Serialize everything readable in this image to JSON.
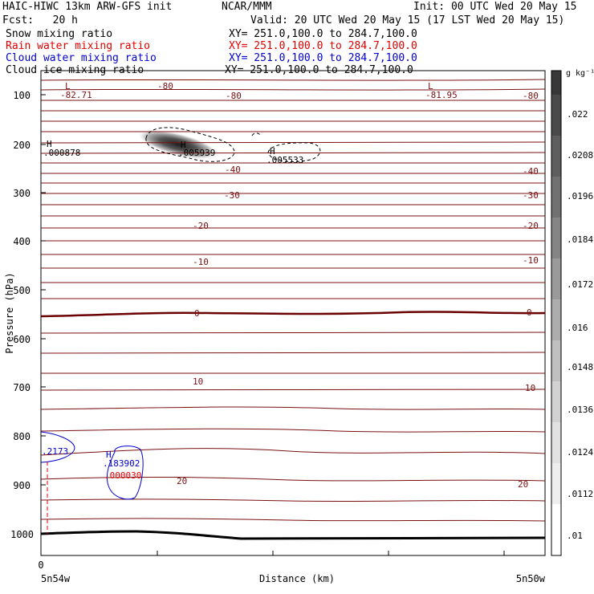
{
  "header": {
    "title": "HAIC-HIWC 13km ARW-GFS init",
    "org": "NCAR/MMM",
    "init": "Init: 00 UTC Wed 20 May 15",
    "fcst": "Fcst:   20 h",
    "valid": "Valid: 20 UTC Wed 20 May 15 (17 LST Wed 20 May 15)",
    "fields": [
      {
        "name": "Snow mixing ratio",
        "xy": "XY= 251.0,100.0 to 284.7,100.0",
        "color": "#000000"
      },
      {
        "name": "Rain water mixing ratio",
        "xy": "XY= 251.0,100.0 to 284.7,100.0",
        "color": "#e00000"
      },
      {
        "name": "Cloud water mixing ratio",
        "xy": "XY= 251.0,100.0 to 284.7,100.0",
        "color": "#0000d0"
      },
      {
        "name": "Cloud ice mixing ratio",
        "xy": "XY= 251.0,100.0 to 284.7,100.0",
        "color": "#000000"
      }
    ]
  },
  "chart_data": {
    "type": "contour",
    "ylabel": "Pressure (hPa)",
    "xlabel": "Distance (km)",
    "ylim": [
      1080,
      55
    ],
    "y_ticks": [
      100,
      200,
      300,
      400,
      500,
      600,
      700,
      800,
      900,
      1000
    ],
    "x_ticks": [
      "0"
    ],
    "x_left_label": "5n54w",
    "x_right_label": "5n50w",
    "colorbar": {
      "unit": "g kg⁻¹",
      "ticks": [
        ".022",
        ".0208",
        ".0196",
        ".0184",
        ".0172",
        ".016",
        ".0148",
        ".0136",
        ".0124",
        ".0112",
        ".01"
      ]
    },
    "temperature_labels": [
      "-82.71",
      "-80",
      "-80",
      "-81.95",
      "-80",
      "-40",
      "-40",
      "-30",
      "-30",
      "-20",
      "-20",
      "-10",
      "-10",
      "0",
      "0",
      "10",
      "10",
      "20",
      "20"
    ],
    "max_min_labels": [
      {
        "mark": "L",
        "value": "-82.71"
      },
      {
        "mark": "L",
        "value": "-81.95"
      },
      {
        "mark": "H",
        "value": ".000878"
      },
      {
        "mark": "H",
        "value": ".005939"
      },
      {
        "mark": "H",
        "value": ".005533"
      },
      {
        "mark": "H",
        "value": ".183902"
      },
      {
        "mark": "",
        "value": ".000030"
      },
      {
        "mark": "",
        "value": ".2173"
      }
    ],
    "colors": {
      "isotherm": "#7a1010",
      "zero_line": "#6a0000",
      "terrain": "#000000",
      "cloud_water": "#0000d0",
      "rain": "#e00000"
    }
  }
}
